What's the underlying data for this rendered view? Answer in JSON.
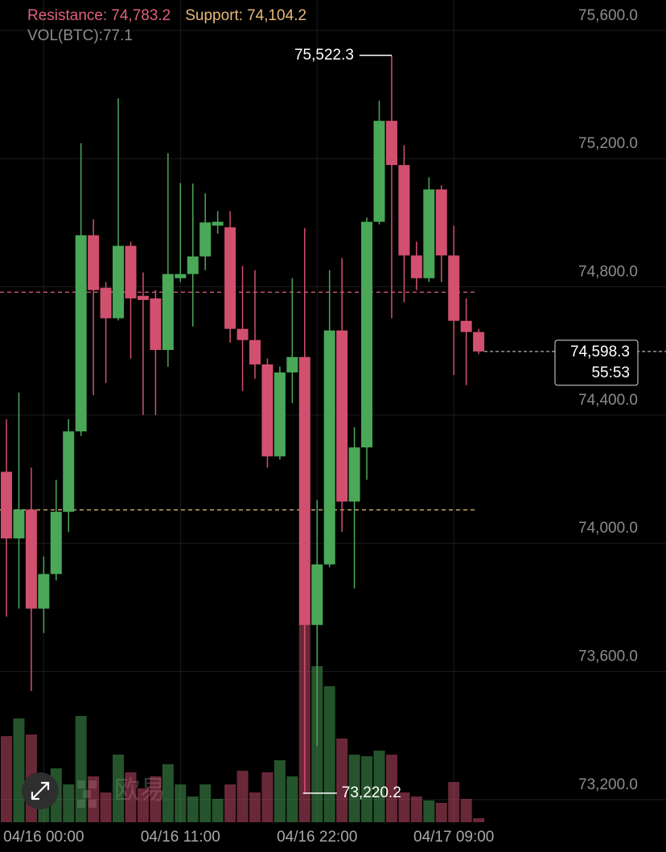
{
  "chart_data": {
    "type": "candlestick",
    "categories": [
      null,
      null,
      null,
      "04/16 00:00",
      null,
      null,
      null,
      null,
      null,
      null,
      null,
      null,
      null,
      null,
      "04/16 11:00",
      null,
      null,
      null,
      null,
      null,
      null,
      null,
      null,
      null,
      null,
      "04/16 22:00",
      null,
      null,
      null,
      null,
      null,
      null,
      null,
      null,
      null,
      null,
      "04/17 09:00",
      null,
      null
    ],
    "open": [
      74223,
      74015,
      74105,
      73796,
      73904,
      74098,
      74349,
      74961,
      74797,
      74702,
      74928,
      74772,
      74764,
      74603,
      74827,
      74840,
      74895,
      74991,
      74986,
      74669,
      74634,
      74558,
      74271,
      74533,
      74581,
      73745,
      73934,
      74664,
      74130,
      74299,
      75003,
      75318,
      75180,
      74898,
      74827,
      75104,
      74898,
      74694,
      74659
    ],
    "high": [
      74387,
      74470,
      74236,
      73959,
      74198,
      74387,
      75248,
      75011,
      74815,
      75388,
      74941,
      74845,
      74790,
      75217,
      75124,
      75122,
      75092,
      75036,
      75036,
      74865,
      74852,
      74576,
      74551,
      74827,
      74983,
      74135,
      74852,
      74890,
      74362,
      75016,
      75381,
      75522.3,
      75242,
      74941,
      75142,
      75117,
      74991,
      74764,
      74669
    ],
    "low": [
      73771,
      73796,
      73539,
      73720,
      73884,
      74035,
      74335,
      74462,
      74500,
      74695,
      74576,
      74400,
      74400,
      74551,
      74815,
      74676,
      74852,
      74966,
      74626,
      74475,
      74513,
      74236,
      74261,
      74437,
      73220.2,
      73368,
      73925,
      74035,
      73859,
      74198,
      74995,
      74702,
      74752,
      74790,
      74815,
      74815,
      74525,
      74493,
      74590
    ],
    "close": [
      74015,
      74105,
      73796,
      73904,
      74098,
      74349,
      74961,
      74790,
      74702,
      74928,
      74764,
      74759,
      74603,
      74840,
      74840,
      74895,
      75001,
      75003,
      74669,
      74634,
      74558,
      74271,
      74533,
      74581,
      73745,
      73934,
      74664,
      74130,
      74299,
      75003,
      75318,
      75180,
      74898,
      74827,
      75104,
      74898,
      74694,
      74659,
      74598.3
    ],
    "up_color": "#4aa858",
    "down_color": "#d1506f",
    "ylim": [
      73122,
      75695
    ],
    "yticks": [
      {
        "value": 75600,
        "label": "75,600.0"
      },
      {
        "value": 75200,
        "label": "75,200.0"
      },
      {
        "value": 74800,
        "label": "74,800.0"
      },
      {
        "value": 74400,
        "label": "74,400.0"
      },
      {
        "value": 74000,
        "label": "74,000.0"
      },
      {
        "value": 73600,
        "label": "73,600.0"
      },
      {
        "value": 73200,
        "label": "73,200.0"
      }
    ],
    "grid": true,
    "resistance": {
      "label": "Resistance:",
      "value": 74783.2,
      "value_label": "74,783.2",
      "color": "#e0607e"
    },
    "support": {
      "label": "Support:",
      "value": 74104.2,
      "value_label": "74,104.2",
      "color": "#e8b87a"
    },
    "volume": {
      "label": "VOL(BTC):",
      "values": [
        1648,
        1987,
        1679,
        678,
        1032,
        724,
        2033,
        878,
        570,
        1294,
        955,
        647,
        878,
        1109,
        724,
        493,
        724,
        447,
        724,
        986,
        570,
        955,
        1186,
        878,
        3804,
        2988,
        2603,
        1602,
        1294,
        1263,
        1371,
        1294,
        570,
        493,
        416,
        370,
        770,
        447,
        77.1
      ]
    },
    "high_label": "75,522.3",
    "low_label": "73,220.2",
    "last_price_label": "74,598.3",
    "countdown": "55:53",
    "watermark": "欧易"
  }
}
